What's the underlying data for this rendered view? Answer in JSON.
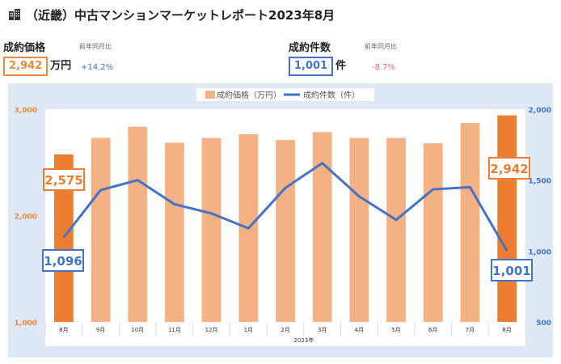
{
  "header": {
    "icon": "building-icon",
    "title": "（近畿）中古マンションマーケットレポート2023年8月"
  },
  "kpi_price": {
    "label": "成約価格",
    "value": "2,942",
    "unit": "万円",
    "yoy_label": "前年同月比",
    "yoy": "+14.2%",
    "color": "#e98a3f",
    "yoy_color": "#4472c4"
  },
  "kpi_count": {
    "label": "成約件数",
    "value": "1,001",
    "unit": "件",
    "yoy_label": "前年同月比",
    "yoy": "-8.7%",
    "color": "#4472c4",
    "yoy_color": "#e46b6b"
  },
  "chart_data": {
    "type": "bar",
    "categories": [
      "8月",
      "9月",
      "10月",
      "11月",
      "12月",
      "1月",
      "2月",
      "3月",
      "4月",
      "5月",
      "6月",
      "7月",
      "8月"
    ],
    "year_label": "2023年",
    "series": [
      {
        "name": "成約価格（万円）",
        "type": "bar",
        "axis": "left",
        "values": [
          2575,
          2730,
          2835,
          2685,
          2730,
          2765,
          2710,
          2785,
          2730,
          2730,
          2680,
          2870,
          2942
        ],
        "color": "#f4b183",
        "highlight_color": "#ed7d31"
      },
      {
        "name": "成約件数（件）",
        "type": "line",
        "axis": "right",
        "values": [
          1096,
          1430,
          1500,
          1330,
          1265,
          1160,
          1445,
          1620,
          1385,
          1220,
          1435,
          1450,
          1001
        ],
        "color": "#4472c4"
      }
    ],
    "yleft": {
      "min": 1000,
      "max": 3000,
      "ticks": [
        "1,000",
        "2,000",
        "3,000"
      ],
      "tick_values": [
        1000,
        2000,
        3000
      ],
      "color": "#e98a3f"
    },
    "yright": {
      "min": 500,
      "max": 2000,
      "ticks": [
        "500",
        "1,000",
        "1,500",
        "2,000"
      ],
      "tick_values": [
        500,
        1000,
        1500,
        2000
      ],
      "color": "#4472c4"
    },
    "callouts": {
      "price_start": "2,575",
      "price_end": "2,942",
      "count_start": "1,096",
      "count_end": "1,001"
    },
    "legend_position": "top"
  }
}
